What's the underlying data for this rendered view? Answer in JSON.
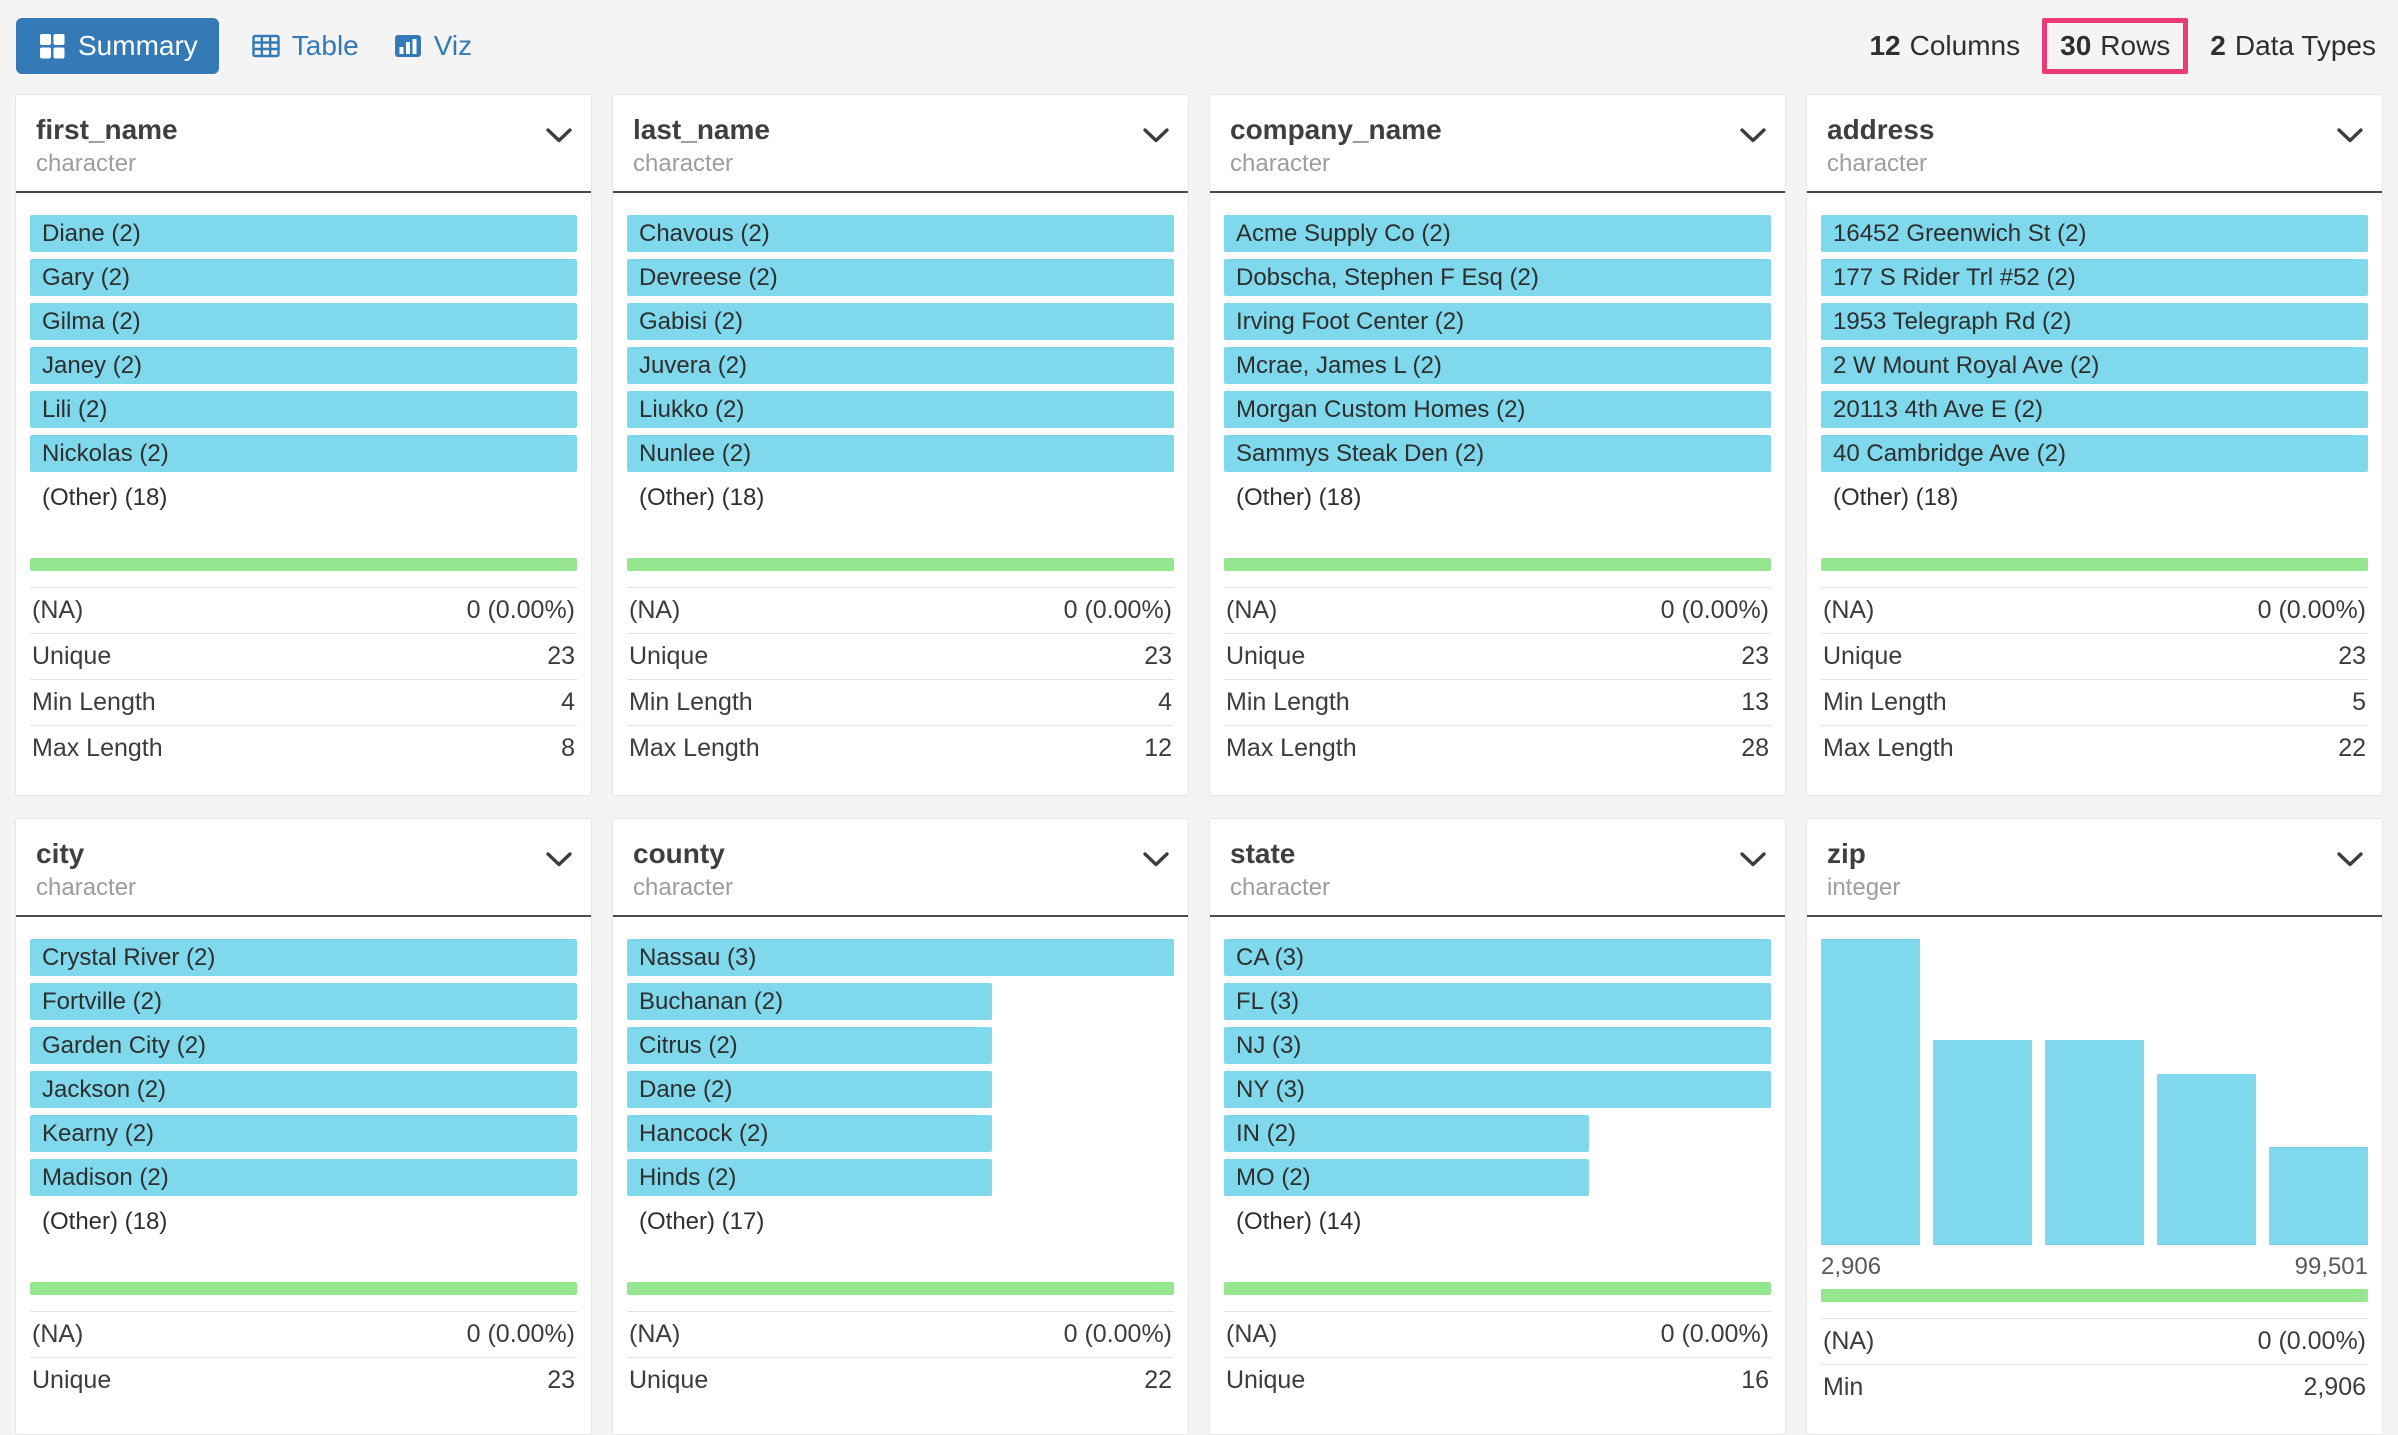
{
  "toolbar": {
    "tabs": [
      {
        "label": "Summary",
        "icon": "grid-icon",
        "active": true
      },
      {
        "label": "Table",
        "icon": "table-icon",
        "active": false
      },
      {
        "label": "Viz",
        "icon": "bar-chart-icon",
        "active": false
      }
    ],
    "stats": [
      {
        "value": "12",
        "label": "Columns",
        "highlighted": false
      },
      {
        "value": "30",
        "label": "Rows",
        "highlighted": true
      },
      {
        "value": "2",
        "label": "Data Types",
        "highlighted": false
      }
    ]
  },
  "colors": {
    "accent_blue": "#337ab7",
    "bar_cyan": "#7fd8ec",
    "bar_green": "#96e690",
    "highlight_pink": "#ec3b72"
  },
  "cards": [
    {
      "name": "first_name",
      "type": "character",
      "kind": "categorical",
      "values": [
        {
          "label": "Diane (2)",
          "pct": 100
        },
        {
          "label": "Gary (2)",
          "pct": 100
        },
        {
          "label": "Gilma (2)",
          "pct": 100
        },
        {
          "label": "Janey (2)",
          "pct": 100
        },
        {
          "label": "Lili (2)",
          "pct": 100
        },
        {
          "label": "Nickolas (2)",
          "pct": 100
        },
        {
          "label": "(Other) (18)",
          "pct": 0
        }
      ],
      "stats": [
        {
          "label": "(NA)",
          "value": "0 (0.00%)"
        },
        {
          "label": "Unique",
          "value": "23"
        },
        {
          "label": "Min Length",
          "value": "4"
        },
        {
          "label": "Max Length",
          "value": "8"
        }
      ]
    },
    {
      "name": "last_name",
      "type": "character",
      "kind": "categorical",
      "values": [
        {
          "label": "Chavous (2)",
          "pct": 100
        },
        {
          "label": "Devreese (2)",
          "pct": 100
        },
        {
          "label": "Gabisi (2)",
          "pct": 100
        },
        {
          "label": "Juvera (2)",
          "pct": 100
        },
        {
          "label": "Liukko (2)",
          "pct": 100
        },
        {
          "label": "Nunlee (2)",
          "pct": 100
        },
        {
          "label": "(Other) (18)",
          "pct": 0
        }
      ],
      "stats": [
        {
          "label": "(NA)",
          "value": "0 (0.00%)"
        },
        {
          "label": "Unique",
          "value": "23"
        },
        {
          "label": "Min Length",
          "value": "4"
        },
        {
          "label": "Max Length",
          "value": "12"
        }
      ]
    },
    {
      "name": "company_name",
      "type": "character",
      "kind": "categorical",
      "values": [
        {
          "label": "Acme Supply Co (2)",
          "pct": 100
        },
        {
          "label": "Dobscha, Stephen F Esq (2)",
          "pct": 100
        },
        {
          "label": "Irving Foot Center (2)",
          "pct": 100
        },
        {
          "label": "Mcrae, James L (2)",
          "pct": 100
        },
        {
          "label": "Morgan Custom Homes (2)",
          "pct": 100
        },
        {
          "label": "Sammys Steak Den (2)",
          "pct": 100
        },
        {
          "label": "(Other) (18)",
          "pct": 0
        }
      ],
      "stats": [
        {
          "label": "(NA)",
          "value": "0 (0.00%)"
        },
        {
          "label": "Unique",
          "value": "23"
        },
        {
          "label": "Min Length",
          "value": "13"
        },
        {
          "label": "Max Length",
          "value": "28"
        }
      ]
    },
    {
      "name": "address",
      "type": "character",
      "kind": "categorical",
      "values": [
        {
          "label": "16452 Greenwich St (2)",
          "pct": 100
        },
        {
          "label": "177 S Rider Trl #52 (2)",
          "pct": 100
        },
        {
          "label": "1953 Telegraph Rd (2)",
          "pct": 100
        },
        {
          "label": "2 W Mount Royal Ave (2)",
          "pct": 100
        },
        {
          "label": "20113 4th Ave E (2)",
          "pct": 100
        },
        {
          "label": "40 Cambridge Ave (2)",
          "pct": 100
        },
        {
          "label": "(Other) (18)",
          "pct": 0
        }
      ],
      "stats": [
        {
          "label": "(NA)",
          "value": "0 (0.00%)"
        },
        {
          "label": "Unique",
          "value": "23"
        },
        {
          "label": "Min Length",
          "value": "5"
        },
        {
          "label": "Max Length",
          "value": "22"
        }
      ]
    },
    {
      "name": "city",
      "type": "character",
      "kind": "categorical",
      "values": [
        {
          "label": "Crystal River (2)",
          "pct": 100
        },
        {
          "label": "Fortville (2)",
          "pct": 100
        },
        {
          "label": "Garden City (2)",
          "pct": 100
        },
        {
          "label": "Jackson (2)",
          "pct": 100
        },
        {
          "label": "Kearny (2)",
          "pct": 100
        },
        {
          "label": "Madison (2)",
          "pct": 100
        },
        {
          "label": "(Other) (18)",
          "pct": 0
        }
      ],
      "stats": [
        {
          "label": "(NA)",
          "value": "0 (0.00%)"
        },
        {
          "label": "Unique",
          "value": "23"
        }
      ]
    },
    {
      "name": "county",
      "type": "character",
      "kind": "categorical",
      "values": [
        {
          "label": "Nassau (3)",
          "pct": 100
        },
        {
          "label": "Buchanan (2)",
          "pct": 66.7
        },
        {
          "label": "Citrus (2)",
          "pct": 66.7
        },
        {
          "label": "Dane (2)",
          "pct": 66.7
        },
        {
          "label": "Hancock (2)",
          "pct": 66.7
        },
        {
          "label": "Hinds (2)",
          "pct": 66.7
        },
        {
          "label": "(Other) (17)",
          "pct": 0
        }
      ],
      "stats": [
        {
          "label": "(NA)",
          "value": "0 (0.00%)"
        },
        {
          "label": "Unique",
          "value": "22"
        }
      ]
    },
    {
      "name": "state",
      "type": "character",
      "kind": "categorical",
      "values": [
        {
          "label": "CA (3)",
          "pct": 100
        },
        {
          "label": "FL (3)",
          "pct": 100
        },
        {
          "label": "NJ (3)",
          "pct": 100
        },
        {
          "label": "NY (3)",
          "pct": 100
        },
        {
          "label": "IN (2)",
          "pct": 66.7
        },
        {
          "label": "MO (2)",
          "pct": 66.7
        },
        {
          "label": "(Other) (14)",
          "pct": 0
        }
      ],
      "stats": [
        {
          "label": "(NA)",
          "value": "0 (0.00%)"
        },
        {
          "label": "Unique",
          "value": "16"
        }
      ]
    },
    {
      "name": "zip",
      "type": "integer",
      "kind": "histogram",
      "histogram": {
        "bar_heights_pct": [
          100,
          67,
          67,
          56,
          32
        ],
        "min_label": "2,906",
        "max_label": "99,501"
      },
      "stats": [
        {
          "label": "(NA)",
          "value": "0 (0.00%)"
        },
        {
          "label": "Min",
          "value": "2,906"
        }
      ]
    }
  ]
}
